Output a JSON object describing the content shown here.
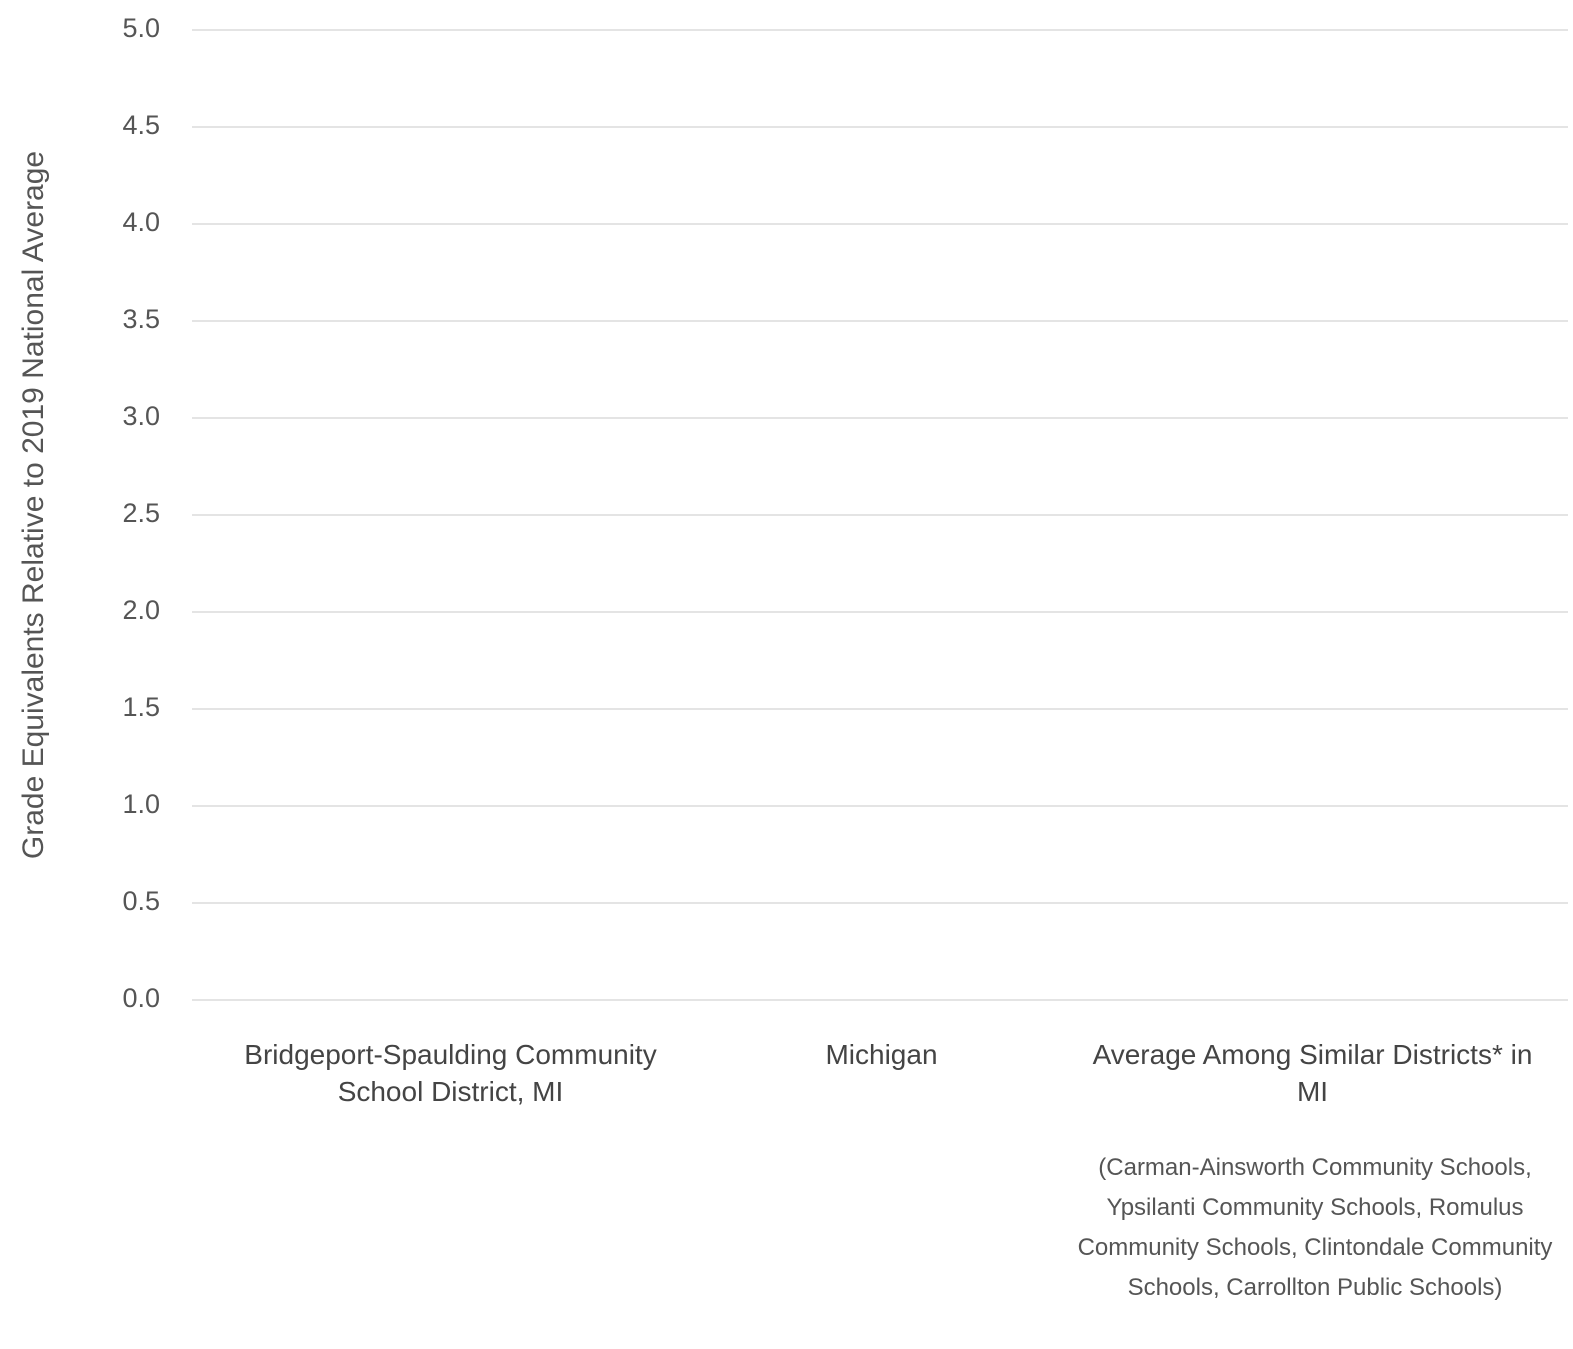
{
  "chart_data": {
    "type": "bar",
    "y_axis_label": "Grade Equivalents Relative to 2019 National Average",
    "categories": [
      "Bridgeport-Spaulding Community School District, MI",
      "Michigan",
      "Average Among Similar Districts* in MI"
    ],
    "annotation": "(Carman-Ainsworth Community Schools, Ypsilanti Community Schools, Romulus Community Schools, Clintondale Community Schools, Carrollton Public Schools)",
    "ylim": [
      0,
      5
    ],
    "yticks": [
      {
        "value": 0,
        "label": "0.0"
      },
      {
        "value": 0.5,
        "label": "0.5"
      },
      {
        "value": 1,
        "label": "1.0"
      },
      {
        "value": 1.5,
        "label": "1.5"
      },
      {
        "value": 2,
        "label": "2.0"
      },
      {
        "value": 2.5,
        "label": "2.5"
      },
      {
        "value": 3,
        "label": "3.0"
      },
      {
        "value": 3.5,
        "label": "3.5"
      },
      {
        "value": 4,
        "label": "4.0"
      },
      {
        "value": 4.5,
        "label": "4.5"
      },
      {
        "value": 5,
        "label": "5.0"
      }
    ],
    "grid": true
  }
}
